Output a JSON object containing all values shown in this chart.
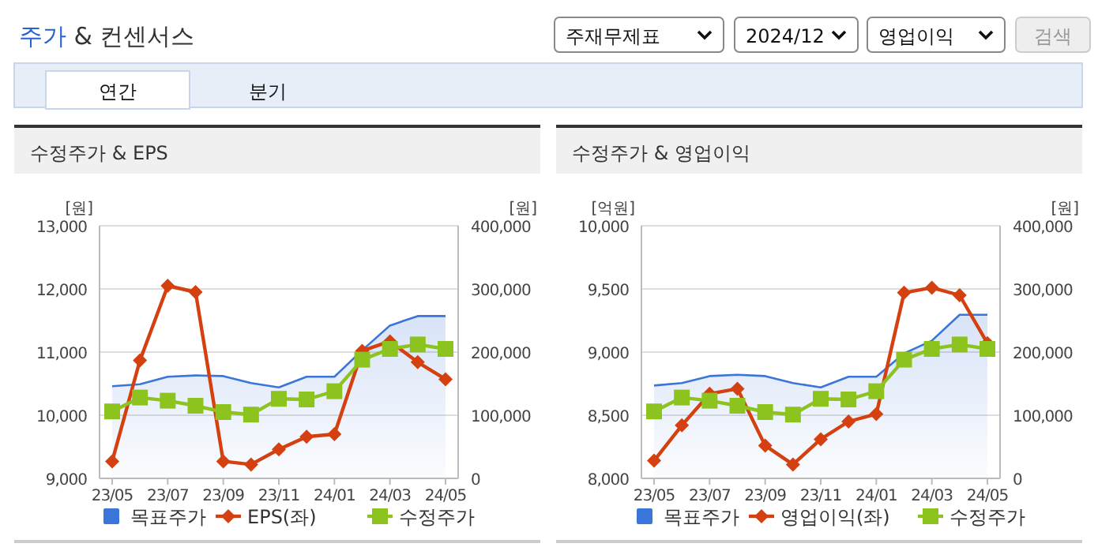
{
  "chart_data": [
    {
      "type": "other",
      "title": "주가 & 컨센서스",
      "annotations": [
        "주재무제표",
        "2024/12",
        "영업이익",
        "검색",
        "연간",
        "분기"
      ]
    },
    {
      "type": "line",
      "title": "수정주가 & EPS",
      "categories": [
        "23/05",
        null,
        "23/07",
        null,
        "23/09",
        null,
        "23/11",
        null,
        "24/01",
        null,
        "24/03",
        null,
        "24/05"
      ],
      "ylabel": "[원]",
      "y2label": "[원]",
      "ylim": [
        9000,
        13000
      ],
      "yticks": [
        {
          "value": 9000,
          "label": "9,000"
        },
        {
          "value": 10000,
          "label": "10,000"
        },
        {
          "value": 11000,
          "label": "11,000"
        },
        {
          "value": 12000,
          "label": "12,000"
        },
        {
          "value": 13000,
          "label": "13,000"
        }
      ],
      "y2lim": [
        0,
        400000
      ],
      "y2ticks": [
        0,
        {
          "value": 100000,
          "label": "100,000"
        },
        {
          "value": 200000,
          "label": "200,000"
        },
        {
          "value": 300000,
          "label": "300,000"
        },
        {
          "value": 400000,
          "label": "400,000"
        }
      ],
      "grid": "y",
      "legend": "bottom",
      "series": [
        {
          "name": "목표주가",
          "type": "area",
          "axis": "y2",
          "color": "#3a75d9",
          "values": [
            146000,
            149000,
            161000,
            163000,
            162000,
            151000,
            144000,
            161000,
            161000,
            203000,
            242000,
            257000,
            257000
          ]
        },
        {
          "name": "EPS(좌)",
          "type": "line",
          "marker": "diamond",
          "color": "#d4400f",
          "values": [
            9270,
            10870,
            12050,
            11950,
            9270,
            9220,
            9460,
            9660,
            9700,
            11020,
            11170,
            10840,
            10570
          ]
        },
        {
          "name": "수정주가",
          "type": "line",
          "axis": "y2",
          "marker": "square",
          "color": "#8cc31f",
          "values": [
            106000,
            128000,
            123000,
            115000,
            105000,
            101000,
            126000,
            125000,
            138000,
            188000,
            205000,
            212000,
            205000
          ]
        }
      ]
    },
    {
      "type": "line",
      "title": "수정주가 & 영업이익",
      "categories": [
        "23/05",
        null,
        "23/07",
        null,
        "23/09",
        null,
        "23/11",
        null,
        "24/01",
        null,
        "24/03",
        null,
        "24/05"
      ],
      "ylabel": "[억원]",
      "y2label": "[원]",
      "ylim": [
        8000,
        10000
      ],
      "yticks": [
        {
          "value": 8000,
          "label": "8,000"
        },
        {
          "value": 8500,
          "label": "8,500"
        },
        {
          "value": 9000,
          "label": "9,000"
        },
        {
          "value": 9500,
          "label": "9,500"
        },
        {
          "value": 10000,
          "label": "10,000"
        }
      ],
      "y2lim": [
        0,
        400000
      ],
      "y2ticks": [
        0,
        {
          "value": 100000,
          "label": "100,000"
        },
        {
          "value": 200000,
          "label": "200,000"
        },
        {
          "value": 300000,
          "label": "300,000"
        },
        {
          "value": 400000,
          "label": "400,000"
        }
      ],
      "grid": "y",
      "legend": "bottom",
      "series": [
        {
          "name": "목표주가",
          "type": "area",
          "axis": "y2",
          "color": "#3a75d9",
          "values": [
            147000,
            151000,
            162000,
            164000,
            162000,
            151000,
            144000,
            161000,
            161000,
            198000,
            218000,
            259000,
            259000
          ]
        },
        {
          "name": "영업이익(좌)",
          "type": "line",
          "marker": "diamond",
          "color": "#d4400f",
          "values": [
            8140,
            8420,
            8670,
            8710,
            8260,
            8110,
            8310,
            8450,
            8510,
            9470,
            9510,
            9450,
            9070
          ]
        },
        {
          "name": "수정주가",
          "type": "line",
          "axis": "y2",
          "marker": "square",
          "color": "#8cc31f",
          "values": [
            106000,
            128000,
            123000,
            115000,
            105000,
            101000,
            126000,
            125000,
            138000,
            188000,
            205000,
            212000,
            205000
          ]
        }
      ]
    }
  ]
}
